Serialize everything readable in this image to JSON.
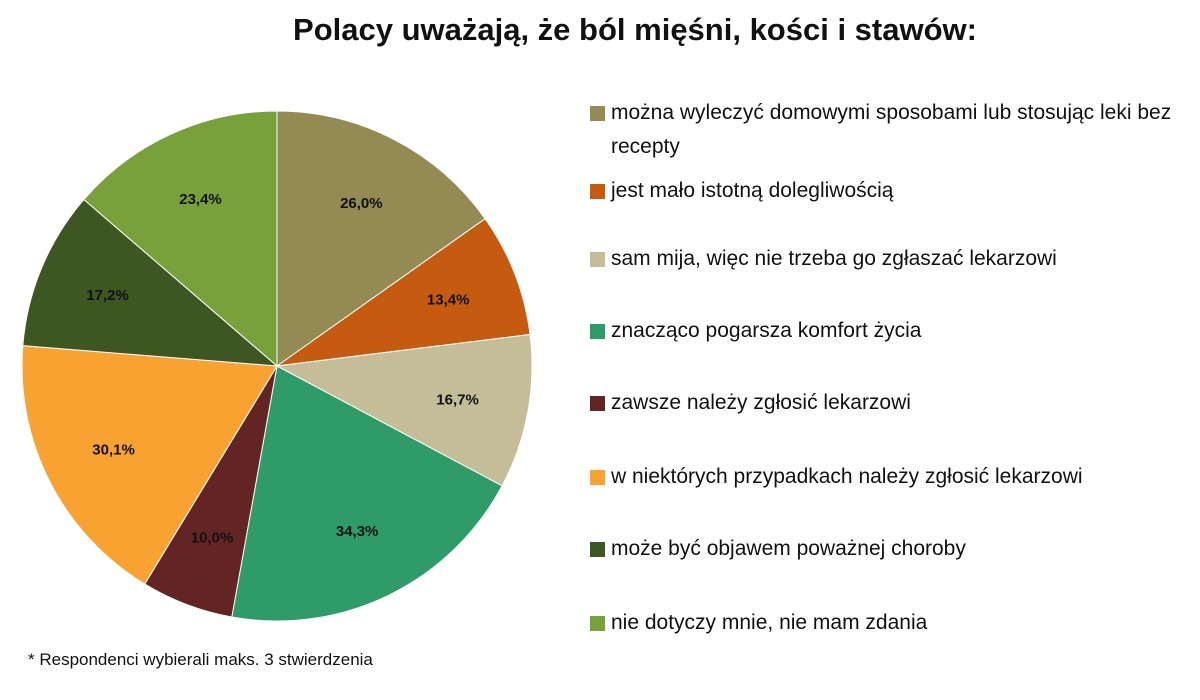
{
  "chart_data": {
    "type": "pie",
    "title": "Polacy uważają, że ból mięśni, kości i stawów:",
    "legend_position": "right",
    "series": [
      {
        "name": "można wyleczyć domowymi  sposobami lub stosując leki bez recepty",
        "value": 26.0,
        "label": "26,0%",
        "color": "#948a54"
      },
      {
        "name": "jest mało istotną dolegliwością",
        "value": 13.4,
        "label": "13,4%",
        "color": "#c55a11"
      },
      {
        "name": "sam mija, więc nie trzeba go zgłaszać lekarzowi",
        "value": 16.7,
        "label": "16,7%",
        "color": "#c4bd97"
      },
      {
        "name": "znacząco pogarsza komfort  życia",
        "value": 34.3,
        "label": "34,3%",
        "color": "#2e9b68"
      },
      {
        "name": "zawsze należy zgłosić lekarzowi",
        "value": 10.0,
        "label": "10,0%",
        "color": "#632523"
      },
      {
        "name": "w niektórych  przypadkach należy zgłosić lekarzowi",
        "value": 30.1,
        "label": "30,1%",
        "color": "#f8a232"
      },
      {
        "name": "może być objawem poważnej  choroby",
        "value": 17.2,
        "label": "17,2%",
        "color": "#3e5622"
      },
      {
        "name": "nie dotyczy mnie, nie mam zdania",
        "value": 23.4,
        "label": "23,4%",
        "color": "#78a13c"
      }
    ],
    "footnote": "* Respondenci wybierali maks. 3 stwierdzenia"
  }
}
